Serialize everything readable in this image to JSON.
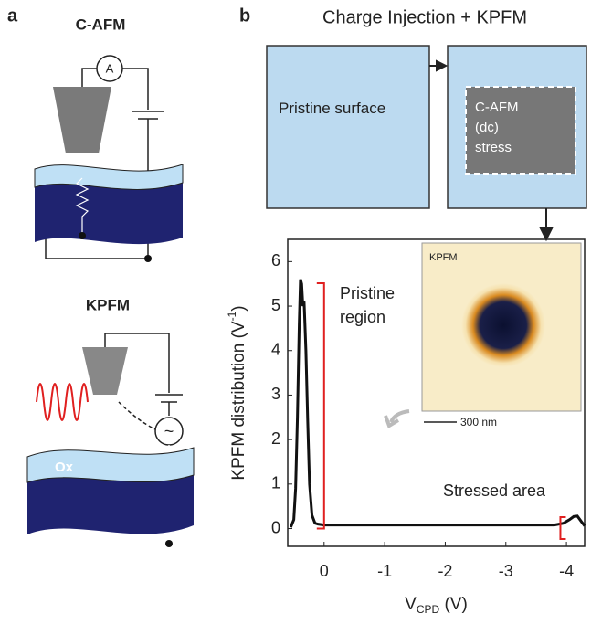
{
  "panels": {
    "a": {
      "label": "a",
      "title_top": "C-AFM",
      "ammeter": "A",
      "title_bottom": "KPFM",
      "oxide": "Ox",
      "ac_source": "~"
    },
    "b": {
      "label": "b",
      "title": "Charge Injection + KPFM",
      "box_left": "Pristine surface",
      "box_right": [
        "C-AFM",
        "(dc)",
        "stress"
      ],
      "inset_title": "KPFM",
      "scale_bar": "300 nm"
    }
  },
  "chart_data": {
    "type": "line",
    "y_label": {
      "main": "KPFM distribution (V",
      "sup": "-1",
      "end": ")"
    },
    "x_label": {
      "main": "V",
      "sub": "CPD",
      "end": " (V)"
    },
    "annotations": [
      "Pristine region",
      "Stressed area"
    ],
    "x": [
      0.55,
      0.5,
      0.47,
      0.44,
      0.41,
      0.39,
      0.37,
      0.35,
      0.33,
      0.3,
      0.27,
      0.24,
      0.2,
      0.15,
      0.1,
      0,
      -1,
      -2,
      -3,
      -3.8,
      -3.95,
      -4.05,
      -4.12,
      -4.18,
      -4.25,
      -4.3
    ],
    "series": [
      {
        "color": "#111111",
        "values": [
          0.03,
          0.2,
          0.9,
          2.5,
          4.6,
          5.6,
          5.5,
          5.0,
          5.1,
          4.0,
          2.4,
          1.0,
          0.3,
          0.12,
          0.1,
          0.08,
          0.08,
          0.08,
          0.08,
          0.08,
          0.12,
          0.2,
          0.27,
          0.28,
          0.15,
          0.06
        ]
      }
    ],
    "xlim": [
      0.6,
      -4.3
    ],
    "ylim": [
      -0.4,
      6.5
    ],
    "xticks": [
      0,
      -1,
      -2,
      -3,
      -4
    ],
    "yticks": [
      0,
      1,
      2,
      3,
      4,
      5,
      6
    ]
  }
}
